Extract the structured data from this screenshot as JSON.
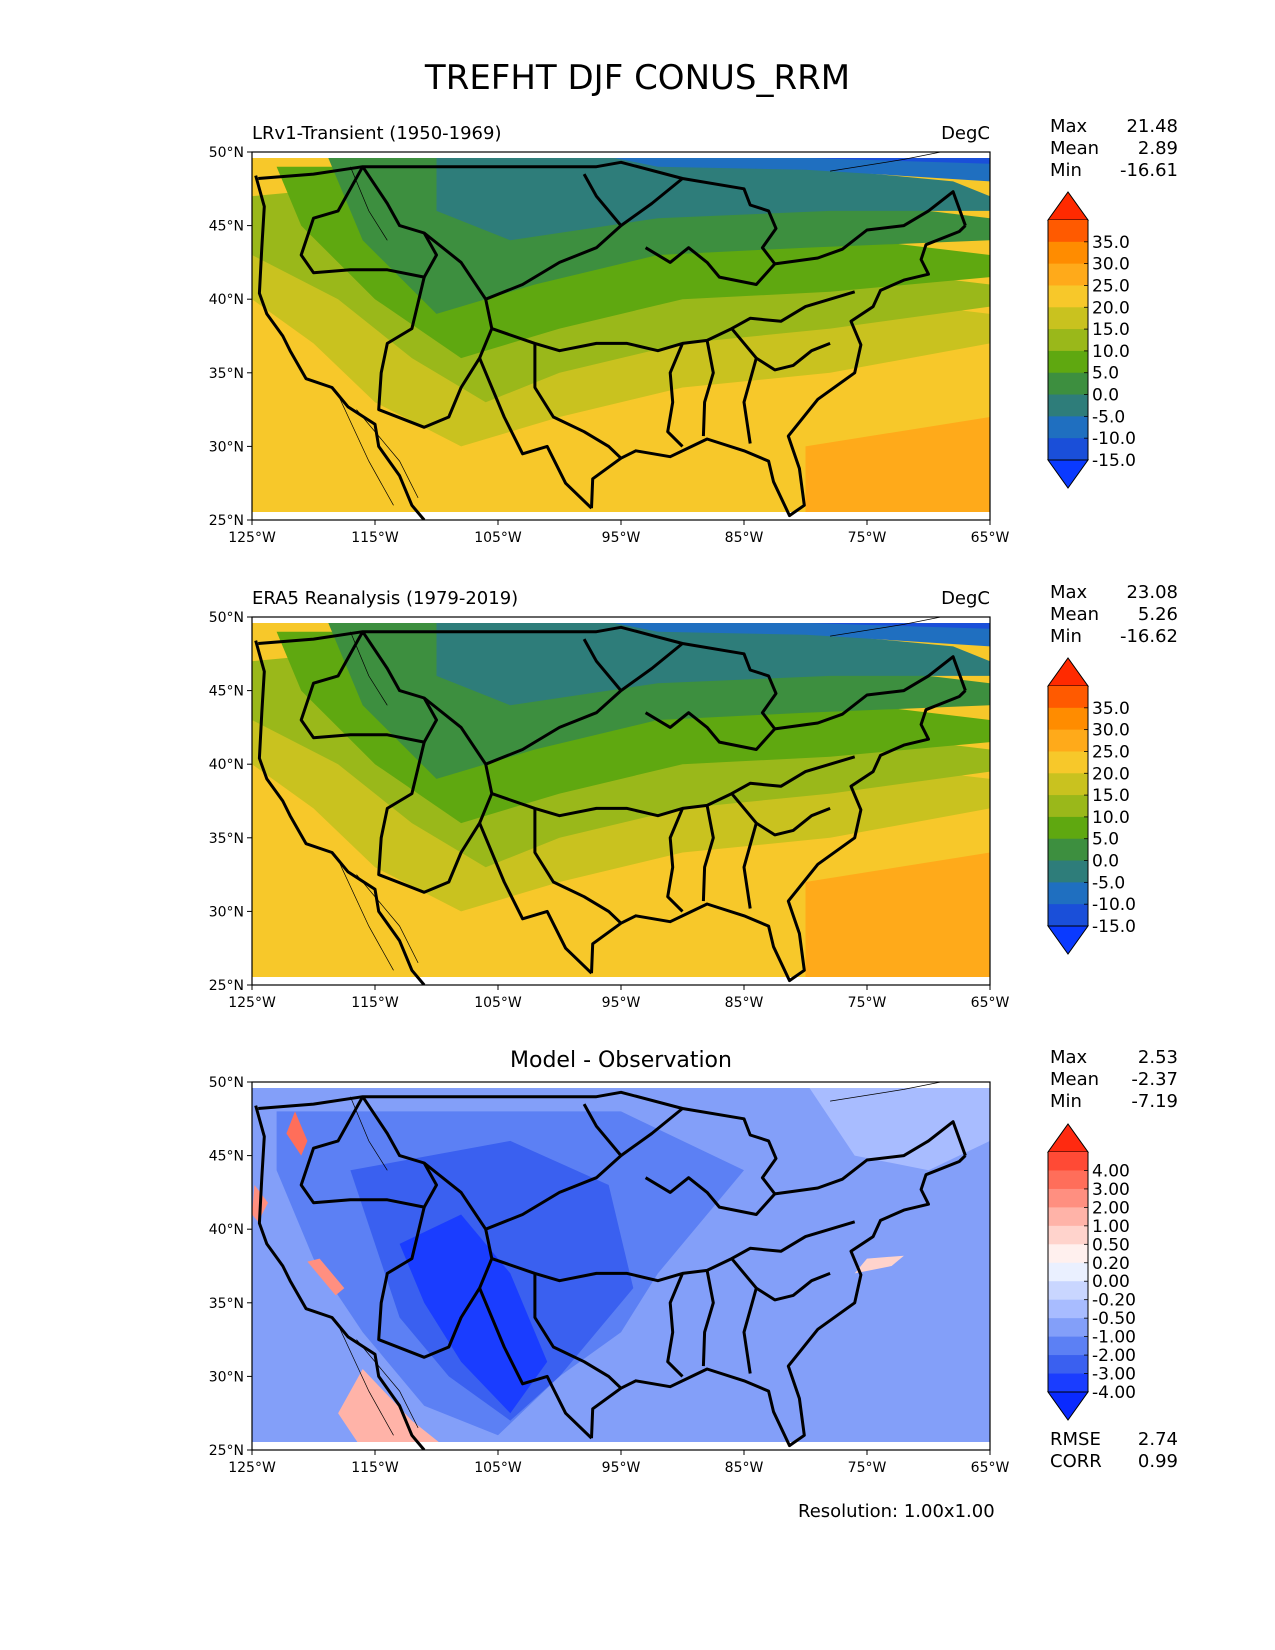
{
  "title": "TREFHT DJF CONUS_RRM",
  "x_ticks": [
    "125°W",
    "115°W",
    "105°W",
    "95°W",
    "85°W",
    "75°W",
    "65°W"
  ],
  "y_ticks": [
    "50°N",
    "45°N",
    "40°N",
    "35°N",
    "30°N",
    "25°N"
  ],
  "panels": [
    {
      "title_left": "LRv1-Transient (1950-1969)",
      "title_right": "DegC",
      "stats": [
        {
          "label": "Max",
          "value": "21.48"
        },
        {
          "label": "Mean",
          "value": "2.89"
        },
        {
          "label": "Min",
          "value": "-16.61"
        }
      ],
      "colorbar": {
        "labels": [
          "35.0",
          "30.0",
          "25.0",
          "20.0",
          "15.0",
          "10.0",
          "5.0",
          "0.0",
          "-5.0",
          "-10.0",
          "-15.0"
        ],
        "colors": [
          "#ff2a00",
          "#ff5a00",
          "#ff8c00",
          "#ffaa1a",
          "#f7c82a",
          "#c9c21f",
          "#9ab81a",
          "#5fa810",
          "#3d8f3f",
          "#2e7d7a",
          "#1f6fc0",
          "#1a4fd9",
          "#0a3aff"
        ]
      }
    },
    {
      "title_left": "ERA5 Reanalysis (1979-2019)",
      "title_right": "DegC",
      "stats": [
        {
          "label": "Max",
          "value": "23.08"
        },
        {
          "label": "Mean",
          "value": "5.26"
        },
        {
          "label": "Min",
          "value": "-16.62"
        }
      ],
      "colorbar": {
        "labels": [
          "35.0",
          "30.0",
          "25.0",
          "20.0",
          "15.0",
          "10.0",
          "5.0",
          "0.0",
          "-5.0",
          "-10.0",
          "-15.0"
        ],
        "colors": [
          "#ff2a00",
          "#ff5a00",
          "#ff8c00",
          "#ffaa1a",
          "#f7c82a",
          "#c9c21f",
          "#9ab81a",
          "#5fa810",
          "#3d8f3f",
          "#2e7d7a",
          "#1f6fc0",
          "#1a4fd9",
          "#0a3aff"
        ]
      }
    },
    {
      "title_center": "Model - Observation",
      "stats": [
        {
          "label": "Max",
          "value": "2.53"
        },
        {
          "label": "Mean",
          "value": "-2.37"
        },
        {
          "label": "Min",
          "value": "-7.19"
        }
      ],
      "extra_stats": [
        {
          "label": "RMSE",
          "value": "2.74"
        },
        {
          "label": "CORR",
          "value": "0.99"
        }
      ],
      "colorbar": {
        "labels": [
          "4.00",
          "3.00",
          "2.00",
          "1.00",
          "0.50",
          "0.20",
          "0.00",
          "-0.20",
          "-0.50",
          "-1.00",
          "-2.00",
          "-3.00",
          "-4.00"
        ],
        "colors": [
          "#ff2a10",
          "#ff4a35",
          "#ff6e5a",
          "#ff8f80",
          "#ffb3a8",
          "#ffd3cc",
          "#fff0ee",
          "#eaf0ff",
          "#c9d6ff",
          "#a8bcff",
          "#839ff9",
          "#5c80f4",
          "#3a60f0",
          "#1a3dff",
          "#0a2aff"
        ]
      }
    }
  ],
  "footer": "Resolution: 1.00x1.00"
}
